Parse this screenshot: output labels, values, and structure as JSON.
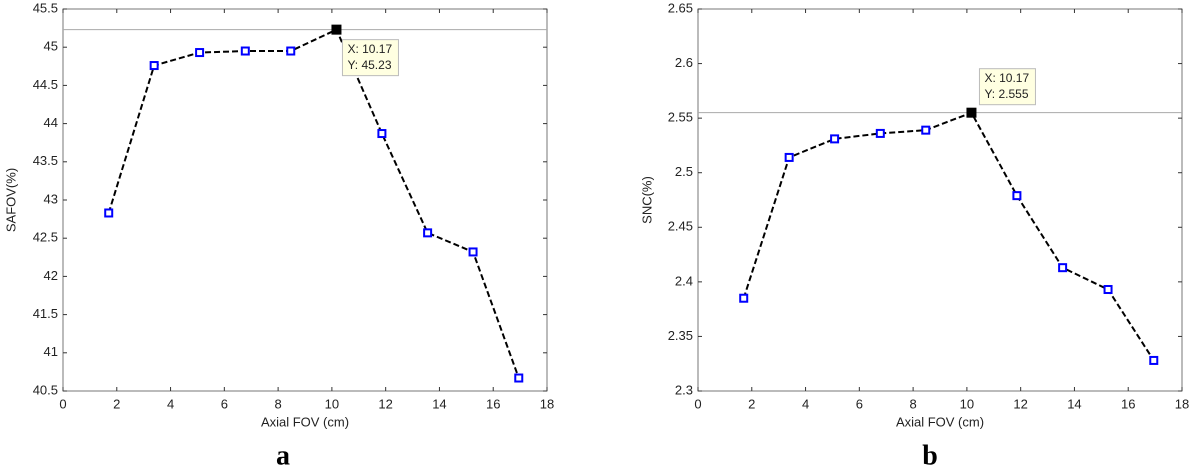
{
  "chart_data": [
    {
      "type": "line",
      "xlabel": "Axial FOV (cm)",
      "ylabel": "SAFOV(%)",
      "panel_label": "a",
      "x": [
        1.7,
        3.39,
        5.08,
        6.78,
        8.47,
        10.17,
        11.86,
        13.56,
        15.25,
        16.95
      ],
      "values": [
        42.83,
        44.76,
        44.93,
        44.95,
        44.95,
        45.23,
        43.87,
        42.57,
        42.32,
        40.67
      ],
      "color": "#0000ff",
      "line_color": "#000000",
      "highlight_index": 5,
      "annotation": [
        "X: 10.17",
        "Y: 45.23"
      ],
      "xlim": [
        0,
        18
      ],
      "xticks": [
        0,
        2,
        4,
        6,
        8,
        10,
        12,
        14,
        16,
        18
      ],
      "ylim": [
        40.5,
        45.5
      ],
      "yticks": [
        40.5,
        41,
        41.5,
        42,
        42.5,
        43,
        43.5,
        44,
        44.5,
        45,
        45.5
      ]
    },
    {
      "type": "line",
      "xlabel": "Axial FOV (cm)",
      "ylabel": "SNC(%)",
      "panel_label": "b",
      "x": [
        1.7,
        3.39,
        5.08,
        6.78,
        8.47,
        10.17,
        11.86,
        13.56,
        15.25,
        16.95
      ],
      "values": [
        2.385,
        2.514,
        2.531,
        2.536,
        2.539,
        2.555,
        2.479,
        2.413,
        2.393,
        2.328
      ],
      "color": "#0000ff",
      "line_color": "#000000",
      "highlight_index": 5,
      "annotation": [
        "X: 10.17",
        "Y: 2.555"
      ],
      "xlim": [
        0,
        18
      ],
      "xticks": [
        0,
        2,
        4,
        6,
        8,
        10,
        12,
        14,
        16,
        18
      ],
      "ylim": [
        2.3,
        2.65
      ],
      "yticks": [
        2.3,
        2.35,
        2.4,
        2.45,
        2.5,
        2.55,
        2.6,
        2.65
      ]
    }
  ]
}
